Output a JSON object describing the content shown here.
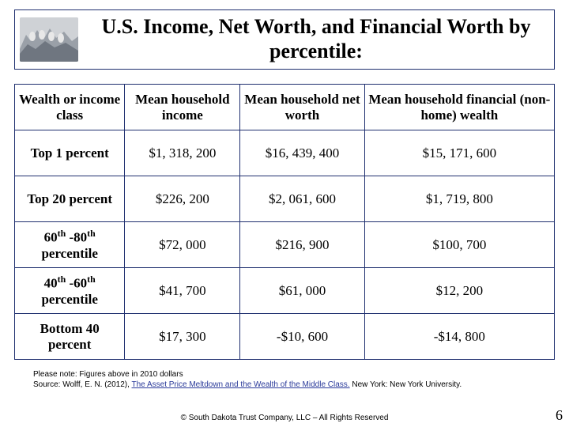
{
  "colors": {
    "border": "#1f2f6f",
    "background": "#ffffff",
    "text": "#000000",
    "citation_link": "#2a3a9a"
  },
  "header": {
    "title": "U.S. Income, Net Worth, and Financial Worth by percentile:",
    "icon_name": "rushmore-icon"
  },
  "table": {
    "columns": [
      "Wealth or income class",
      "Mean household income",
      "Mean household net worth",
      "Mean household financial (non-home) wealth"
    ],
    "rows": [
      {
        "label_html": "Top 1 percent",
        "income": "$1, 318, 200",
        "networth": "$16, 439, 400",
        "finwealth": "$15, 171, 600"
      },
      {
        "label_html": "Top 20 percent",
        "income": "$226, 200",
        "networth": "$2, 061, 600",
        "finwealth": "$1, 719, 800"
      },
      {
        "label_html": "60<sup>th</sup> -80<sup>th</sup> percentile",
        "income": "$72, 000",
        "networth": "$216, 900",
        "finwealth": "$100, 700"
      },
      {
        "label_html": "40<sup>th</sup> -60<sup>th</sup> percentile",
        "income": "$41, 700",
        "networth": "$61, 000",
        "finwealth": "$12, 200"
      },
      {
        "label_html": "Bottom 40 percent",
        "income": "$17, 300",
        "networth": "-$10, 600",
        "finwealth": "-$14, 800"
      }
    ]
  },
  "footnote": {
    "line1": "Please note: Figures above in 2010 dollars",
    "line2_pre": "Source: Wolff, E. N. (2012), ",
    "line2_citation": "The Asset Price Meltdown and the Wealth of the Middle Class.",
    "line2_post": " New York: New York University."
  },
  "copyright": "© South Dakota Trust Company, LLC – All Rights Reserved",
  "page_number": "6"
}
